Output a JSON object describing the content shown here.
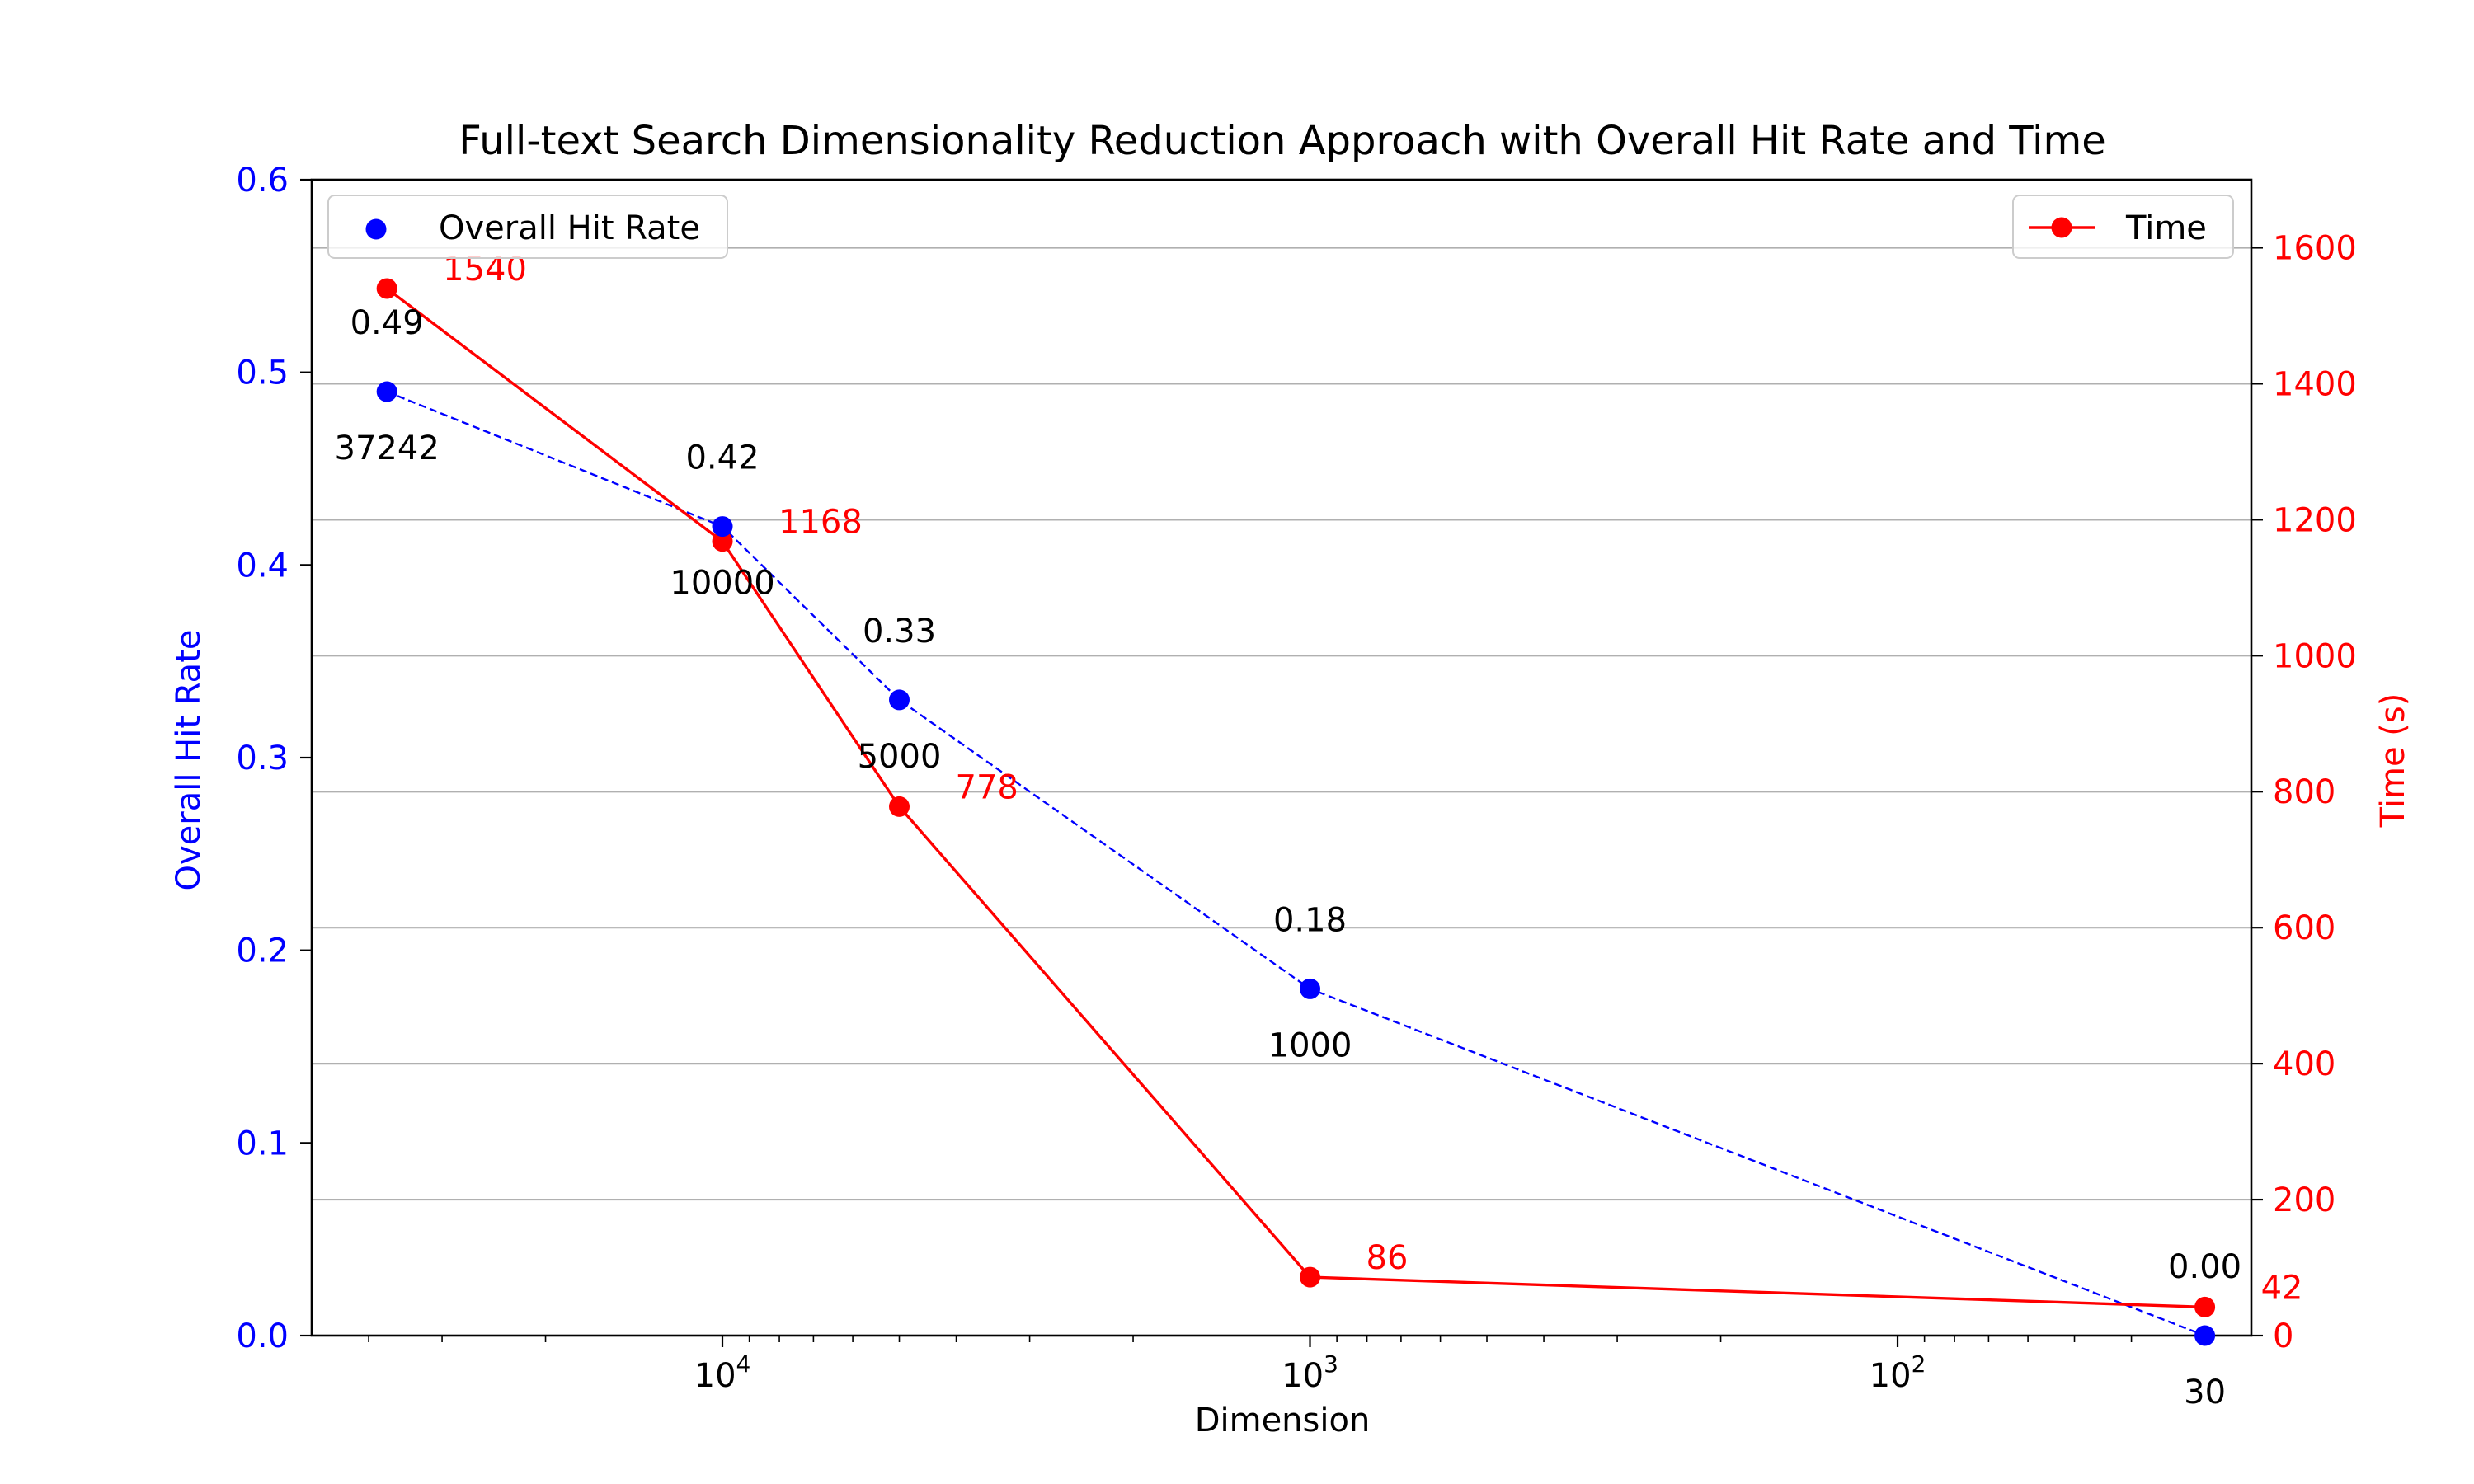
{
  "chart_data": {
    "type": "line",
    "title": "Full-text Search Dimensionality Reduction Approach with Overall Hit Rate and Time",
    "xlabel": "Dimension",
    "ylabel": "Overall Hit Rate",
    "y2label": "Time (s)",
    "x_scale": "log",
    "x_reversed": true,
    "xlim": [
      50000,
      25
    ],
    "ylim": [
      0,
      0.6
    ],
    "y2lim": [
      0,
      1700
    ],
    "x_ticks": [
      {
        "value": 10000,
        "base": "10",
        "exp": "4"
      },
      {
        "value": 1000,
        "base": "10",
        "exp": "3"
      },
      {
        "value": 100,
        "base": "10",
        "exp": "2"
      }
    ],
    "y_ticks": [
      "0.0",
      "0.1",
      "0.2",
      "0.3",
      "0.4",
      "0.5",
      "0.6"
    ],
    "y2_ticks": [
      "0",
      "200",
      "400",
      "600",
      "800",
      "1000",
      "1200",
      "1400",
      "1600"
    ],
    "grid": "horizontal (right axis)",
    "colors": {
      "hit_rate": "#0000ff",
      "time": "#ff0000",
      "grid": "#b0b0b0",
      "text": "#000000"
    },
    "series": [
      {
        "name": "Overall Hit Rate",
        "axis": "left",
        "style": "scatter, dashed connector",
        "x": [
          37242,
          10000,
          5000,
          1000,
          30
        ],
        "y": [
          0.49,
          0.42,
          0.33,
          0.18,
          0.0
        ],
        "value_labels": [
          "0.49",
          "0.42",
          "0.33",
          "0.18",
          "0.00"
        ],
        "dimension_labels": [
          "37242",
          "10000",
          "5000",
          "1000",
          "30"
        ]
      },
      {
        "name": "Time",
        "axis": "right",
        "style": "line with markers",
        "x": [
          37242,
          10000,
          5000,
          1000,
          30
        ],
        "y": [
          1540,
          1168,
          778,
          86,
          42
        ],
        "value_labels": [
          "1540",
          "1168",
          "778",
          "86",
          "42"
        ]
      }
    ],
    "legends": [
      {
        "entry": "Overall Hit Rate",
        "placement": "upper-left"
      },
      {
        "entry": "Time",
        "placement": "upper-right"
      }
    ]
  }
}
